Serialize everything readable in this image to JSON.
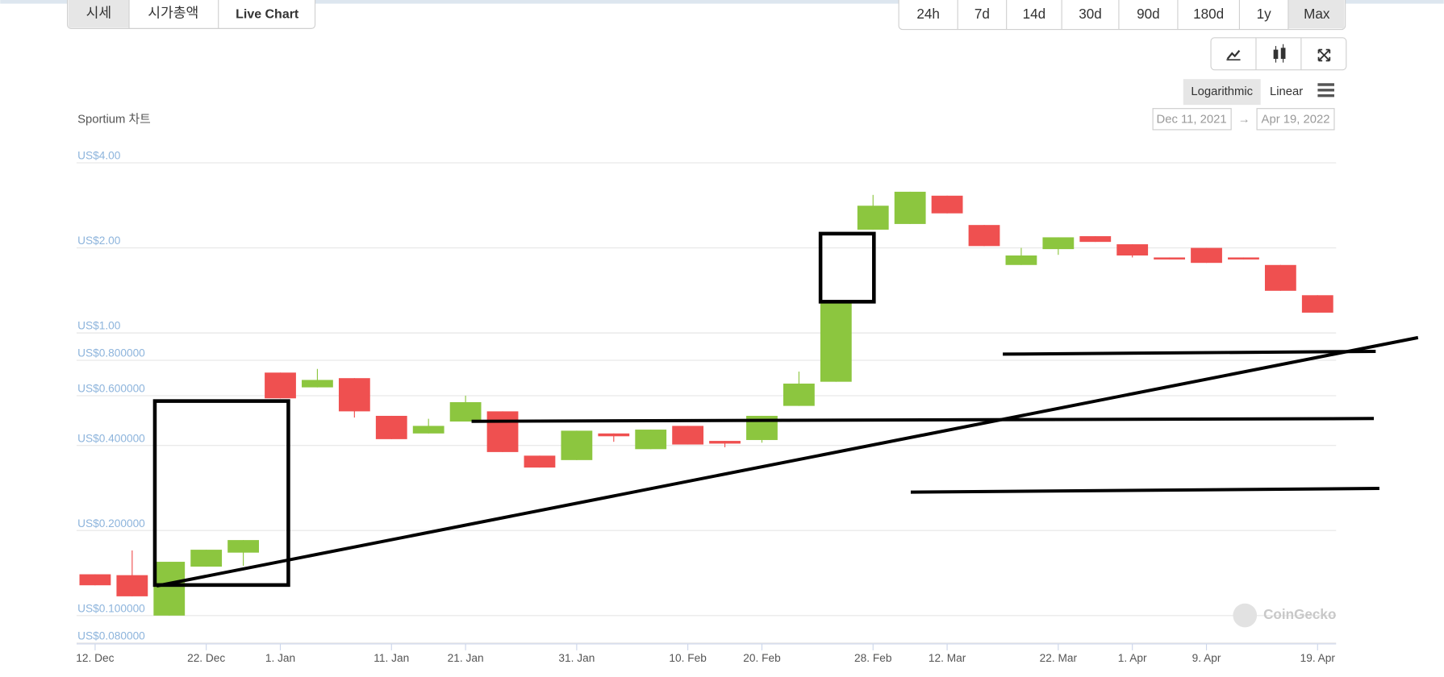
{
  "ui": {
    "tabs": [
      "시세",
      "시가총액",
      "Live Chart"
    ],
    "ranges": [
      "24h",
      "7d",
      "14d",
      "30d",
      "90d",
      "180d",
      "1y",
      "Max"
    ],
    "scales": [
      "Logarithmic",
      "Linear"
    ],
    "date_from": "Dec 11, 2021",
    "date_arrow": "→",
    "date_to": "Apr 19, 2022",
    "watermark": "CoinGecko"
  },
  "chart_data": {
    "type": "candlestick",
    "title": "Sportium 차트",
    "categories": [
      "12. Dec",
      null,
      null,
      "22. Dec",
      null,
      "1. Jan",
      null,
      null,
      "11. Jan",
      null,
      "21. Jan",
      null,
      null,
      "31. Jan",
      null,
      null,
      "10. Feb",
      null,
      "20. Feb",
      null,
      null,
      "28. Feb",
      null,
      "12. Mar",
      null,
      null,
      "22. Mar",
      null,
      "1. Apr",
      null,
      "9. Apr",
      null,
      null,
      "19. Apr"
    ],
    "open": [
      0.14,
      0.139,
      0.1,
      0.149,
      0.167,
      0.724,
      0.642,
      0.692,
      0.509,
      0.441,
      0.486,
      0.528,
      0.368,
      0.355,
      0.441,
      0.388,
      0.469,
      0.415,
      0.418,
      0.552,
      0.672,
      2.32,
      2.43,
      3.06,
      2.41,
      1.74,
      1.98,
      2.2,
      2.06,
      1.85,
      2.0,
      1.85,
      1.74,
      1.36
    ],
    "high": [
      0.14,
      0.17,
      0.155,
      0.171,
      0.185,
      0.724,
      0.746,
      0.692,
      0.509,
      0.497,
      0.6,
      0.528,
      0.368,
      0.451,
      0.441,
      0.455,
      0.469,
      0.415,
      0.509,
      0.73,
      1.281,
      3.08,
      3.16,
      3.06,
      2.41,
      2.0,
      2.18,
      2.2,
      2.06,
      1.85,
      2.0,
      1.85,
      1.74,
      1.36
    ],
    "low": [
      0.128,
      0.117,
      0.1,
      0.149,
      0.15,
      0.587,
      0.642,
      0.502,
      0.421,
      0.441,
      0.486,
      0.379,
      0.334,
      0.355,
      0.412,
      0.388,
      0.403,
      0.394,
      0.409,
      0.552,
      0.672,
      2.32,
      2.43,
      2.65,
      2.03,
      1.74,
      1.89,
      2.1,
      1.85,
      1.82,
      1.77,
      1.82,
      1.41,
      1.18
    ],
    "close": [
      0.128,
      0.117,
      0.155,
      0.171,
      0.185,
      0.587,
      0.682,
      0.528,
      0.421,
      0.469,
      0.569,
      0.379,
      0.334,
      0.451,
      0.431,
      0.455,
      0.403,
      0.406,
      0.509,
      0.662,
      1.281,
      2.82,
      3.16,
      2.65,
      2.03,
      1.88,
      2.18,
      2.1,
      1.88,
      1.82,
      1.77,
      1.82,
      1.41,
      1.18
    ],
    "up_color": "#8cc63f",
    "down_color": "#ef5050",
    "log_scale": true,
    "grid": true,
    "ylim": [
      0.08,
      4
    ],
    "yticks": [
      {
        "value": 4,
        "label": "US$4.00"
      },
      {
        "value": 2,
        "label": "US$2.00"
      },
      {
        "value": 1,
        "label": "US$1.00"
      },
      {
        "value": 0.8,
        "label": "US$0.800000"
      },
      {
        "value": 0.6,
        "label": "US$0.600000"
      },
      {
        "value": 0.4,
        "label": "US$0.400000"
      },
      {
        "value": 0.2,
        "label": "US$0.200000"
      },
      {
        "value": 0.1,
        "label": "US$0.100000"
      },
      {
        "value": 0.08,
        "label": "US$0.080000"
      }
    ]
  }
}
